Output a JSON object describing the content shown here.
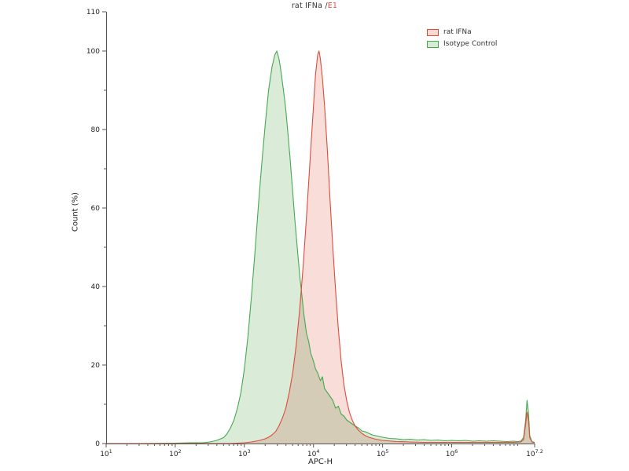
{
  "title": {
    "main": "rat IFNa /",
    "highlight": "E1",
    "highlight_color": "#e2503f"
  },
  "chart_data": {
    "type": "area",
    "subtype": "flow-cytometry-histogram-overlay",
    "title": "rat IFNa / E1",
    "xlabel": "APC-H",
    "ylabel": "Count (%)",
    "x_scale": "log10",
    "x_range_log": [
      1,
      7.2
    ],
    "y_range": [
      0,
      110
    ],
    "x_major_ticks": [
      "1",
      "2",
      "3",
      "4",
      "5",
      "6",
      "7.2"
    ],
    "x_tick_base": "10",
    "y_ticks": [
      0,
      20,
      40,
      60,
      80,
      100,
      110
    ],
    "y_minor_ticks": [
      10,
      30,
      50,
      70,
      90
    ],
    "grid": false,
    "legend_position": "top-right",
    "axis_color": "#555555",
    "series": [
      {
        "name": "rat IFNa",
        "stroke": "#dd4b3b",
        "fill": "#f7d9d4",
        "peak_log10_x": 4.08,
        "peak_pct": 100,
        "points": [
          [
            1.0,
            0
          ],
          [
            2.0,
            0
          ],
          [
            2.8,
            0
          ],
          [
            3.0,
            0.2
          ],
          [
            3.1,
            0.4
          ],
          [
            3.2,
            0.7
          ],
          [
            3.3,
            1.2
          ],
          [
            3.35,
            1.6
          ],
          [
            3.4,
            2.2
          ],
          [
            3.45,
            3
          ],
          [
            3.5,
            4.5
          ],
          [
            3.55,
            6.5
          ],
          [
            3.6,
            9
          ],
          [
            3.65,
            13
          ],
          [
            3.7,
            18
          ],
          [
            3.75,
            25
          ],
          [
            3.8,
            34
          ],
          [
            3.85,
            45
          ],
          [
            3.9,
            58
          ],
          [
            3.95,
            72
          ],
          [
            4.0,
            86
          ],
          [
            4.03,
            94
          ],
          [
            4.06,
            99
          ],
          [
            4.08,
            100
          ],
          [
            4.1,
            98
          ],
          [
            4.13,
            93
          ],
          [
            4.16,
            86
          ],
          [
            4.2,
            75
          ],
          [
            4.24,
            62
          ],
          [
            4.28,
            50
          ],
          [
            4.32,
            39
          ],
          [
            4.36,
            29
          ],
          [
            4.4,
            21
          ],
          [
            4.44,
            15
          ],
          [
            4.48,
            11
          ],
          [
            4.52,
            8
          ],
          [
            4.56,
            6
          ],
          [
            4.6,
            4.5
          ],
          [
            4.65,
            3.4
          ],
          [
            4.7,
            2.6
          ],
          [
            4.75,
            2
          ],
          [
            4.8,
            1.6
          ],
          [
            4.9,
            1.1
          ],
          [
            5.0,
            0.8
          ],
          [
            5.2,
            0.5
          ],
          [
            5.4,
            0.4
          ],
          [
            5.6,
            0.3
          ],
          [
            5.8,
            0.3
          ],
          [
            6.0,
            0.3
          ],
          [
            6.5,
            0.3
          ],
          [
            6.9,
            0.3
          ],
          [
            7.0,
            0.4
          ],
          [
            7.04,
            1
          ],
          [
            7.07,
            5
          ],
          [
            7.09,
            8
          ],
          [
            7.11,
            6
          ],
          [
            7.13,
            1.5
          ],
          [
            7.16,
            0.4
          ],
          [
            7.2,
            0.2
          ]
        ]
      },
      {
        "name": "Isotype Control",
        "stroke": "#44a94f",
        "fill": "#d6ead4",
        "peak_log10_x": 3.47,
        "peak_pct": 100,
        "points": [
          [
            1.0,
            0
          ],
          [
            1.5,
            0
          ],
          [
            2.0,
            0.1
          ],
          [
            2.2,
            0.2
          ],
          [
            2.4,
            0.2
          ],
          [
            2.5,
            0.4
          ],
          [
            2.6,
            0.8
          ],
          [
            2.7,
            1.5
          ],
          [
            2.75,
            2.5
          ],
          [
            2.8,
            4
          ],
          [
            2.85,
            6
          ],
          [
            2.9,
            9
          ],
          [
            2.95,
            13
          ],
          [
            3.0,
            19
          ],
          [
            3.05,
            27
          ],
          [
            3.1,
            37
          ],
          [
            3.15,
            48
          ],
          [
            3.2,
            60
          ],
          [
            3.25,
            71
          ],
          [
            3.3,
            81
          ],
          [
            3.35,
            90
          ],
          [
            3.4,
            96
          ],
          [
            3.44,
            99
          ],
          [
            3.47,
            100
          ],
          [
            3.5,
            98
          ],
          [
            3.52,
            96
          ],
          [
            3.55,
            92
          ],
          [
            3.58,
            88
          ],
          [
            3.6,
            85
          ],
          [
            3.63,
            79
          ],
          [
            3.66,
            73
          ],
          [
            3.7,
            64
          ],
          [
            3.73,
            57
          ],
          [
            3.76,
            51
          ],
          [
            3.8,
            43
          ],
          [
            3.83,
            38
          ],
          [
            3.86,
            33
          ],
          [
            3.9,
            28
          ],
          [
            3.93,
            26
          ],
          [
            3.96,
            23
          ],
          [
            4.0,
            21
          ],
          [
            4.03,
            19
          ],
          [
            4.06,
            18
          ],
          [
            4.1,
            16
          ],
          [
            4.13,
            17
          ],
          [
            4.16,
            14
          ],
          [
            4.2,
            13
          ],
          [
            4.24,
            12
          ],
          [
            4.28,
            11
          ],
          [
            4.32,
            9
          ],
          [
            4.36,
            9.5
          ],
          [
            4.4,
            7.5
          ],
          [
            4.44,
            7
          ],
          [
            4.48,
            6
          ],
          [
            4.52,
            5.5
          ],
          [
            4.56,
            5
          ],
          [
            4.6,
            4.5
          ],
          [
            4.65,
            4
          ],
          [
            4.7,
            3.2
          ],
          [
            4.75,
            3
          ],
          [
            4.8,
            2.6
          ],
          [
            4.85,
            2.2
          ],
          [
            4.9,
            2
          ],
          [
            4.95,
            1.8
          ],
          [
            5.0,
            1.6
          ],
          [
            5.1,
            1.3
          ],
          [
            5.2,
            1.2
          ],
          [
            5.3,
            1
          ],
          [
            5.4,
            1.1
          ],
          [
            5.5,
            0.9
          ],
          [
            5.6,
            1
          ],
          [
            5.7,
            0.8
          ],
          [
            5.8,
            0.9
          ],
          [
            5.9,
            0.7
          ],
          [
            6.0,
            0.8
          ],
          [
            6.1,
            0.7
          ],
          [
            6.2,
            0.8
          ],
          [
            6.3,
            0.6
          ],
          [
            6.4,
            0.7
          ],
          [
            6.5,
            0.6
          ],
          [
            6.6,
            0.7
          ],
          [
            6.7,
            0.6
          ],
          [
            6.8,
            0.5
          ],
          [
            6.9,
            0.6
          ],
          [
            6.95,
            0.5
          ],
          [
            7.0,
            0.6
          ],
          [
            7.04,
            1.5
          ],
          [
            7.07,
            6
          ],
          [
            7.09,
            11
          ],
          [
            7.11,
            8
          ],
          [
            7.13,
            2
          ],
          [
            7.16,
            0.5
          ],
          [
            7.2,
            0.3
          ]
        ]
      }
    ]
  }
}
